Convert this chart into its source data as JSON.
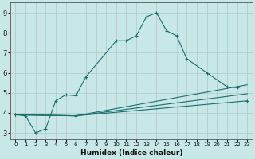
{
  "xlabel": "Humidex (Indice chaleur)",
  "background_color": "#c8e8e8",
  "line_color": "#1a6e6e",
  "xlim": [
    -0.5,
    23.5
  ],
  "ylim": [
    2.7,
    9.5
  ],
  "xticks": [
    0,
    1,
    2,
    3,
    4,
    5,
    6,
    7,
    8,
    9,
    10,
    11,
    12,
    13,
    14,
    15,
    16,
    17,
    18,
    19,
    20,
    21,
    22,
    23
  ],
  "yticks": [
    3,
    4,
    5,
    6,
    7,
    8,
    9
  ],
  "line1_x": [
    0,
    1,
    2,
    3,
    4,
    5,
    6,
    7,
    10,
    11,
    12,
    13,
    14,
    15,
    16,
    17,
    19,
    21,
    22
  ],
  "line1_y": [
    3.9,
    3.85,
    3.0,
    3.2,
    4.6,
    4.9,
    4.85,
    5.8,
    7.6,
    7.6,
    7.85,
    8.8,
    9.0,
    8.1,
    7.85,
    6.7,
    6.0,
    5.3,
    5.25
  ],
  "line3_x": [
    0,
    6,
    23
  ],
  "line3_y": [
    3.9,
    3.85,
    5.4
  ],
  "line4_x": [
    0,
    6,
    23
  ],
  "line4_y": [
    3.9,
    3.85,
    4.95
  ],
  "line5_x": [
    0,
    6,
    23
  ],
  "line5_y": [
    3.9,
    3.85,
    4.6
  ]
}
